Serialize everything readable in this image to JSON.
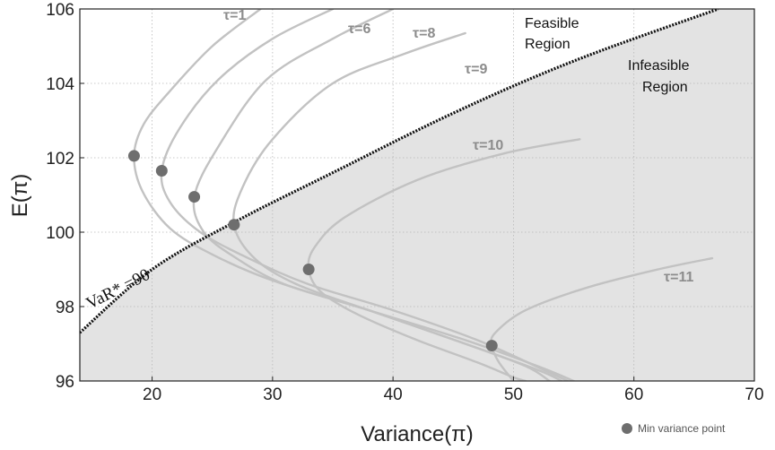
{
  "chart_data": {
    "type": "line",
    "xlabel": "Variance(π)",
    "ylabel": "E(π)",
    "xlim": [
      14,
      70
    ],
    "ylim": [
      96,
      106
    ],
    "x_ticks": [
      20,
      30,
      40,
      50,
      60,
      70
    ],
    "y_ticks": [
      96,
      98,
      100,
      102,
      104,
      106
    ],
    "grid": true,
    "colors": {
      "curve": "#c2c2c2",
      "curve_label": "#8c8c8c",
      "infeasible_fill": "#e3e3e3",
      "var_line": "#111111",
      "point": "#6e6e6e"
    },
    "var_constraint": {
      "label": "VaR* =90",
      "points": [
        [
          14,
          97.3
        ],
        [
          20,
          99.0
        ],
        [
          27,
          100.3
        ],
        [
          35,
          101.6
        ],
        [
          45,
          103.2
        ],
        [
          55,
          104.6
        ],
        [
          67,
          106
        ]
      ]
    },
    "regions": {
      "feasible": [
        "Feasible",
        "Region"
      ],
      "infeasible": [
        "Infeasible",
        "Region"
      ]
    },
    "series": [
      {
        "name": "τ=1",
        "label": "τ=1",
        "points": [
          [
            29,
            106
          ],
          [
            25,
            105.0
          ],
          [
            21.5,
            103.8
          ],
          [
            19.3,
            102.9
          ],
          [
            18.5,
            102.05
          ],
          [
            19.2,
            101.1
          ],
          [
            21.5,
            100.1
          ],
          [
            25,
            99.4
          ],
          [
            30,
            98.7
          ],
          [
            38,
            97.9
          ],
          [
            46,
            97.1
          ],
          [
            52,
            96.4
          ],
          [
            55,
            96
          ]
        ],
        "min_point": [
          18.5,
          102.05
        ]
      },
      {
        "name": "τ=6",
        "label": "τ=6",
        "points": [
          [
            35,
            106
          ],
          [
            30,
            105.2
          ],
          [
            25.5,
            104.1
          ],
          [
            22.3,
            102.8
          ],
          [
            20.8,
            101.65
          ],
          [
            21.5,
            100.8
          ],
          [
            24,
            100.0
          ],
          [
            28,
            99.3
          ],
          [
            33,
            98.6
          ],
          [
            40,
            97.9
          ],
          [
            47,
            97.1
          ],
          [
            52.5,
            96.3
          ],
          [
            54.5,
            96
          ]
        ],
        "min_point": [
          20.8,
          101.65
        ]
      },
      {
        "name": "τ=8",
        "label": "τ=8",
        "points": [
          [
            40,
            106
          ],
          [
            35,
            105.2
          ],
          [
            29.5,
            104.1
          ],
          [
            25.5,
            102.3
          ],
          [
            23.5,
            100.95
          ],
          [
            24.3,
            100.0
          ],
          [
            27,
            99.3
          ],
          [
            31,
            98.6
          ],
          [
            38,
            97.9
          ],
          [
            46,
            97.0
          ],
          [
            52,
            96.3
          ],
          [
            54,
            96
          ]
        ],
        "min_point": [
          23.5,
          100.95
        ]
      },
      {
        "name": "τ=9",
        "label": "τ=9",
        "points": [
          [
            46,
            105.35
          ],
          [
            41,
            104.8
          ],
          [
            35,
            104.0
          ],
          [
            30,
            102.5
          ],
          [
            27.5,
            101.2
          ],
          [
            26.8,
            100.2
          ],
          [
            28.5,
            99.3
          ],
          [
            32,
            98.6
          ],
          [
            38,
            97.9
          ],
          [
            46,
            97.0
          ],
          [
            51,
            96.4
          ],
          [
            53,
            96
          ]
        ],
        "min_point": [
          26.8,
          100.2
        ]
      },
      {
        "name": "τ=10",
        "label": "τ=10",
        "points": [
          [
            55.5,
            102.5
          ],
          [
            49,
            102.1
          ],
          [
            42,
            101.4
          ],
          [
            36,
            100.4
          ],
          [
            33.5,
            99.6
          ],
          [
            33,
            99.0
          ],
          [
            34,
            98.4
          ],
          [
            37,
            97.8
          ],
          [
            42,
            97.1
          ],
          [
            47,
            96.5
          ],
          [
            50,
            96.1
          ],
          [
            51,
            96
          ]
        ],
        "min_point": [
          33,
          99.0
        ]
      },
      {
        "name": "τ=11",
        "label": "τ=11",
        "points": [
          [
            66.5,
            99.3
          ],
          [
            62,
            99.0
          ],
          [
            56,
            98.5
          ],
          [
            51,
            97.9
          ],
          [
            48.5,
            97.3
          ],
          [
            48.2,
            96.95
          ],
          [
            48.8,
            96.5
          ],
          [
            50,
            96
          ]
        ],
        "min_point": [
          48.2,
          96.95
        ]
      }
    ],
    "legend": {
      "label": "Min variance point",
      "placement": "bottom-right"
    }
  }
}
